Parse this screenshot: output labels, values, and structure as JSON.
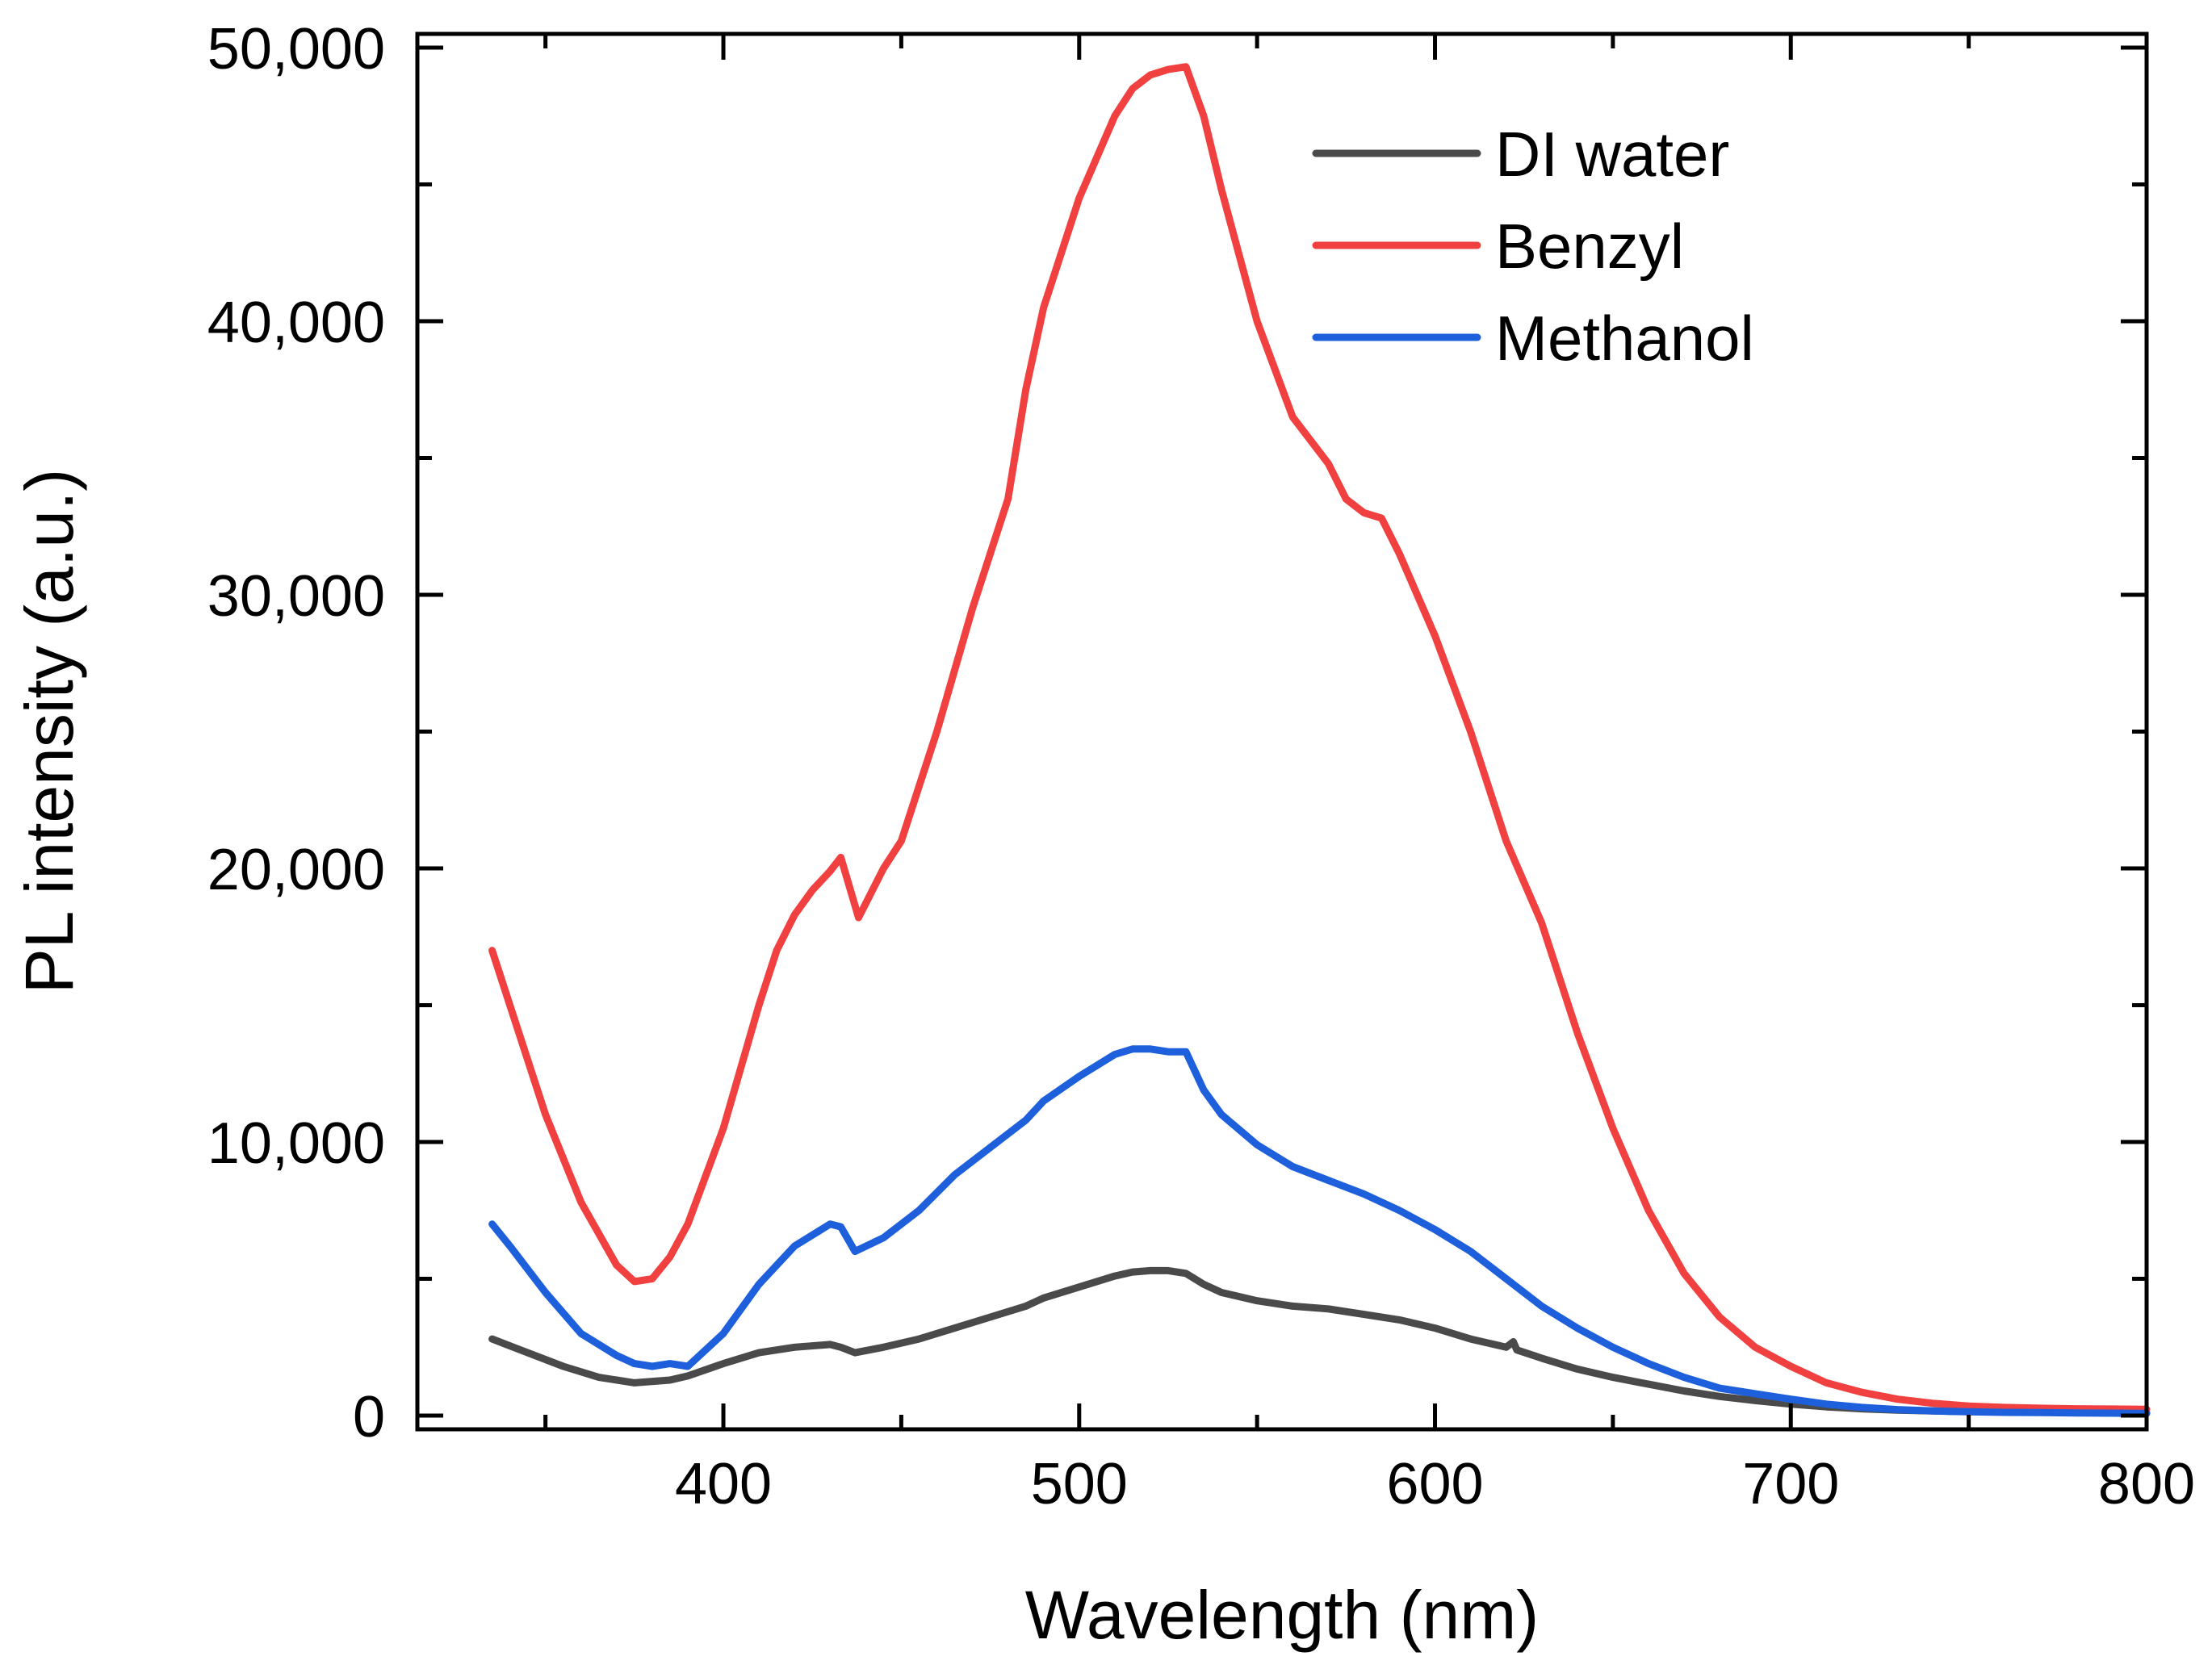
{
  "chart_data": {
    "type": "line",
    "title": "",
    "xlabel": "Wavelength (nm)",
    "ylabel": "PL intensity (a.u.)",
    "xlim": [
      314,
      800
    ],
    "ylim": [
      -500,
      50500
    ],
    "x_ticks": [
      400,
      500,
      600,
      700,
      800
    ],
    "x_tick_labels": [
      "400",
      "500",
      "600",
      "700",
      "800"
    ],
    "y_ticks": [
      0,
      10000,
      20000,
      30000,
      40000,
      50000
    ],
    "y_tick_labels": [
      "0",
      "10,000",
      "20,000",
      "30,000",
      "40,000",
      "50,000"
    ],
    "grid": false,
    "legend_position": "top-right",
    "series": [
      {
        "name": "DI water",
        "color": "#4a4a4a",
        "x": [
          335,
          345,
          355,
          365,
          375,
          385,
          390,
          400,
          410,
          420,
          430,
          433,
          437,
          445,
          455,
          465,
          475,
          485,
          490,
          500,
          510,
          515,
          520,
          525,
          530,
          535,
          540,
          550,
          560,
          570,
          580,
          590,
          600,
          610,
          620,
          622,
          623,
          630,
          640,
          650,
          660,
          670,
          680,
          690,
          700,
          710,
          720,
          730,
          740,
          750,
          760,
          770,
          780,
          790,
          800
        ],
        "y": [
          2800,
          2300,
          1800,
          1400,
          1200,
          1300,
          1450,
          1900,
          2300,
          2500,
          2600,
          2500,
          2300,
          2500,
          2800,
          3200,
          3600,
          4000,
          4300,
          4700,
          5100,
          5250,
          5300,
          5300,
          5200,
          4800,
          4500,
          4200,
          4000,
          3900,
          3700,
          3500,
          3200,
          2800,
          2500,
          2700,
          2400,
          2100,
          1700,
          1400,
          1150,
          900,
          700,
          550,
          420,
          320,
          250,
          200,
          170,
          150,
          140,
          130,
          120,
          110,
          100
        ]
      },
      {
        "name": "Benzyl",
        "color": "#f04040",
        "x": [
          335,
          340,
          350,
          360,
          370,
          375,
          380,
          385,
          390,
          400,
          410,
          415,
          420,
          425,
          430,
          433,
          438,
          445,
          450,
          460,
          470,
          480,
          485,
          490,
          500,
          510,
          515,
          520,
          525,
          530,
          535,
          540,
          550,
          560,
          570,
          575,
          580,
          585,
          590,
          600,
          610,
          620,
          630,
          640,
          650,
          660,
          670,
          680,
          690,
          700,
          710,
          720,
          730,
          740,
          750,
          760,
          770,
          780,
          790,
          800
        ],
        "y": [
          17000,
          15000,
          11000,
          7800,
          5500,
          4900,
          5000,
          5800,
          7000,
          10500,
          15000,
          17000,
          18300,
          19200,
          19900,
          20400,
          18200,
          20000,
          21000,
          25000,
          29500,
          33500,
          37500,
          40500,
          44500,
          47500,
          48500,
          49000,
          49200,
          49300,
          47500,
          44800,
          40000,
          36500,
          34800,
          33500,
          33000,
          32800,
          31500,
          28500,
          25000,
          21000,
          18000,
          14000,
          10500,
          7500,
          5200,
          3600,
          2500,
          1800,
          1200,
          850,
          600,
          450,
          350,
          300,
          270,
          250,
          240,
          230
        ]
      },
      {
        "name": "Methanol",
        "color": "#1e60dc",
        "x": [
          335,
          340,
          350,
          360,
          370,
          375,
          380,
          385,
          390,
          400,
          410,
          420,
          430,
          433,
          437,
          445,
          455,
          465,
          475,
          485,
          490,
          500,
          510,
          515,
          520,
          525,
          530,
          535,
          540,
          550,
          560,
          570,
          580,
          590,
          600,
          610,
          620,
          630,
          640,
          650,
          660,
          670,
          680,
          690,
          700,
          710,
          720,
          730,
          740,
          750,
          760,
          770,
          780,
          790,
          800
        ],
        "y": [
          7000,
          6200,
          4500,
          3000,
          2200,
          1900,
          1800,
          1900,
          1800,
          3000,
          4800,
          6200,
          7000,
          6900,
          6000,
          6500,
          7500,
          8800,
          9800,
          10800,
          11500,
          12400,
          13200,
          13400,
          13400,
          13300,
          13300,
          11900,
          11000,
          9900,
          9100,
          8600,
          8100,
          7500,
          6800,
          6000,
          5000,
          4000,
          3200,
          2500,
          1900,
          1400,
          1000,
          800,
          600,
          420,
          300,
          220,
          170,
          140,
          120,
          110,
          100,
          90,
          80
        ]
      }
    ]
  }
}
